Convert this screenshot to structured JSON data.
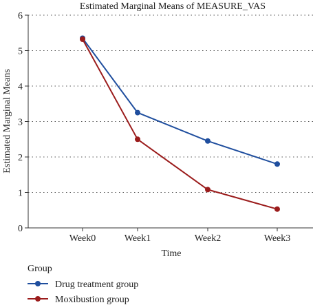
{
  "chart_data": {
    "type": "line",
    "title": "Estimated Marginal Means of MEASURE_VAS",
    "xlabel": "Time",
    "ylabel": "Estimated Marginal Means",
    "categories": [
      "Week0",
      "Week1",
      "Week2",
      "Week3"
    ],
    "ylim": [
      0,
      6
    ],
    "yticks": [
      0,
      1,
      2,
      3,
      4,
      5,
      6
    ],
    "grid": "horizontal-dotted",
    "legend_title": "Group",
    "legend_position": "bottom-left",
    "series": [
      {
        "name": "Drug treatment group",
        "color": "#1f4e9e",
        "values": [
          5.35,
          3.25,
          2.45,
          1.8
        ]
      },
      {
        "name": "Moxibustion group",
        "color": "#9b1c1c",
        "values": [
          5.32,
          2.5,
          1.08,
          0.53
        ]
      }
    ]
  }
}
